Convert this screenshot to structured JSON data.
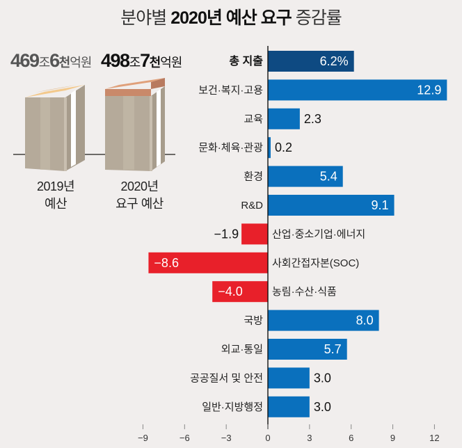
{
  "title": {
    "part1": "분야별 ",
    "part2": "2020년 예산 요구",
    "part3": " 증감률"
  },
  "budgets": [
    {
      "amount_main": "469",
      "unit1": "조",
      "amount_sub": "6",
      "unit2": "천",
      "unit3": "억원",
      "caption_line1": "2019년",
      "caption_line2": "예산"
    },
    {
      "amount_main": "498",
      "unit1": "조",
      "amount_sub": "7",
      "unit2": "천",
      "unit3": "억원",
      "caption_line1": "2020년",
      "caption_line2": "요구 예산"
    }
  ],
  "colors": {
    "total": "#0e4a82",
    "positive": "#0a70bd",
    "negative": "#e8202a",
    "background": "#f1eeed"
  },
  "chart_data": {
    "type": "bar",
    "orientation": "horizontal",
    "title": "분야별 2020년 예산 요구 증감률",
    "xlabel": "",
    "ylabel": "",
    "unit": "%",
    "xlim": [
      -9,
      12
    ],
    "xticks": [
      -9,
      -6,
      -3,
      0,
      3,
      6,
      9,
      12
    ],
    "xtick_labels": [
      "−9",
      "−6",
      "−3",
      "0",
      "3",
      "6",
      "9",
      "12"
    ],
    "grid": false,
    "categories": [
      "총 지출",
      "보건·복지·고용",
      "교육",
      "문화·체육·관광",
      "환경",
      "R&D",
      "산업·중소기업·에너지",
      "사회간접자본(SOC)",
      "농림·수산·식품",
      "국방",
      "외교·통일",
      "공공질서 및 안전",
      "일반·지방행정"
    ],
    "values": [
      6.2,
      12.9,
      2.3,
      0.2,
      5.4,
      9.1,
      -1.9,
      -8.6,
      -4.0,
      8.0,
      5.7,
      3.0,
      3.0
    ],
    "labels": [
      "6.2%",
      "12.9",
      "2.3",
      "0.2",
      "5.4",
      "9.1",
      "−1.9",
      "−8.6",
      "−4.0",
      "8.0",
      "5.7",
      "3.0",
      "3.0"
    ],
    "highlight": [
      true,
      false,
      false,
      false,
      false,
      false,
      false,
      false,
      false,
      false,
      false,
      false,
      false
    ]
  }
}
